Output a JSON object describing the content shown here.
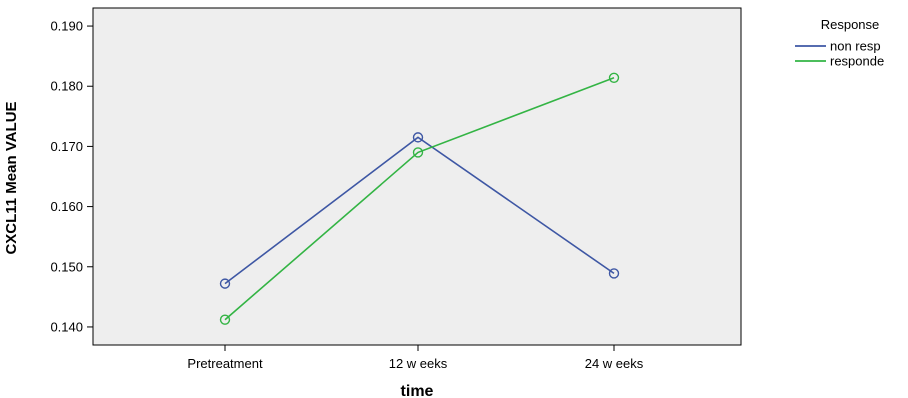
{
  "chart_data": {
    "type": "line",
    "title": "",
    "xlabel": "time",
    "ylabel": "CXCL11 Mean VALUE",
    "categories": [
      "Pretreatment",
      "12 w eeks",
      "24 w eeks"
    ],
    "ylim": [
      0.137,
      0.193
    ],
    "yticks": [
      0.14,
      0.15,
      0.16,
      0.17,
      0.18,
      0.19
    ],
    "ytick_labels": [
      "0.140",
      "0.150",
      "0.160",
      "0.170",
      "0.180",
      "0.190"
    ],
    "grid": false,
    "plot_background": "#eeeeee",
    "legend": {
      "title": "Response",
      "position": "right"
    },
    "series": [
      {
        "name": "non resp",
        "color": "#3e57a4",
        "values": [
          0.1472,
          0.1715,
          0.1489
        ]
      },
      {
        "name": "responde",
        "color": "#33b444",
        "values": [
          0.1412,
          0.169,
          0.1814
        ]
      }
    ]
  }
}
